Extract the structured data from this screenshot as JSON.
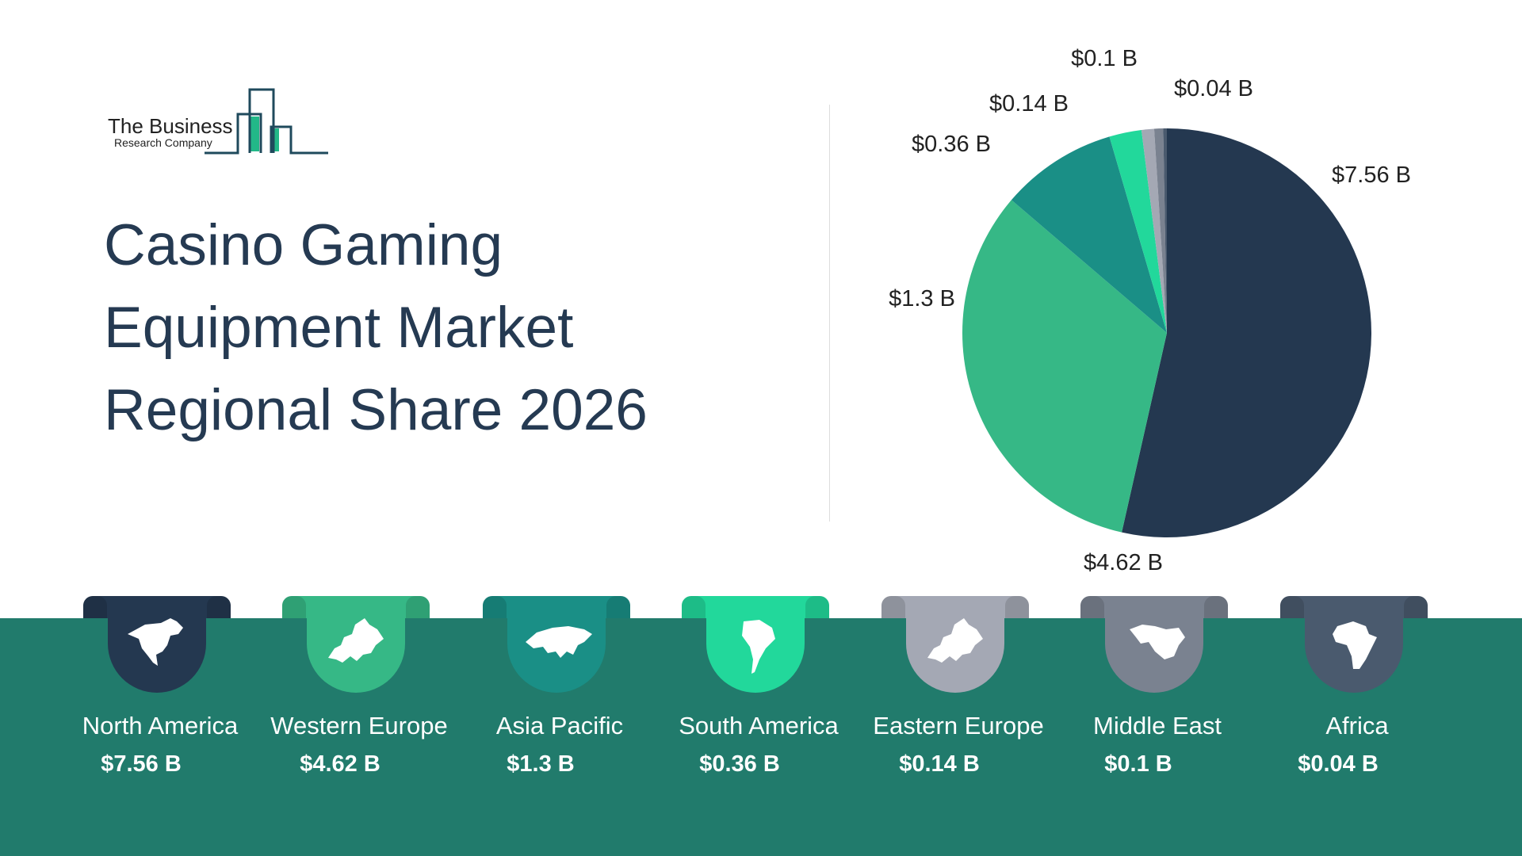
{
  "logo": {
    "line1": "The Business",
    "line2": "Research Company"
  },
  "title": [
    "Casino Gaming",
    "Equipment Market",
    "Regional Share 2026"
  ],
  "colors": {
    "band": "#217b6c",
    "title": "#253a52"
  },
  "chart_data": {
    "type": "pie",
    "start": "12 o'clock, clockwise",
    "categories": [
      "North America",
      "Western Europe",
      "Asia Pacific",
      "South America",
      "Eastern Europe",
      "Middle East",
      "Africa"
    ],
    "values": [
      7.56,
      4.62,
      1.3,
      0.36,
      0.14,
      0.1,
      0.04
    ],
    "unit": "$ B",
    "data_labels": [
      "$7.56 B",
      "$4.62 B",
      "$1.3 B",
      "$0.36 B",
      "$0.14 B",
      "$0.1 B",
      "$0.04 B"
    ],
    "colors": [
      "#243850",
      "#36b886",
      "#1a8f86",
      "#22d89b",
      "#a4a8b4",
      "#7a8290",
      "#4a5a6e"
    ]
  },
  "regions": [
    {
      "name": "North America",
      "value": "$7.56 B",
      "icon": "north-america-map-icon"
    },
    {
      "name": "Western Europe",
      "value": "$4.62 B",
      "icon": "europe-map-icon"
    },
    {
      "name": "Asia Pacific",
      "value": "$1.3 B",
      "icon": "asia-map-icon"
    },
    {
      "name": "South America",
      "value": "$0.36 B",
      "icon": "south-america-map-icon"
    },
    {
      "name": "Eastern Europe",
      "value": "$0.14 B",
      "icon": "europe-map-icon"
    },
    {
      "name": "Middle East",
      "value": "$0.1 B",
      "icon": "middle-east-map-icon"
    },
    {
      "name": "Africa",
      "value": "$0.04 B",
      "icon": "africa-map-icon"
    }
  ]
}
